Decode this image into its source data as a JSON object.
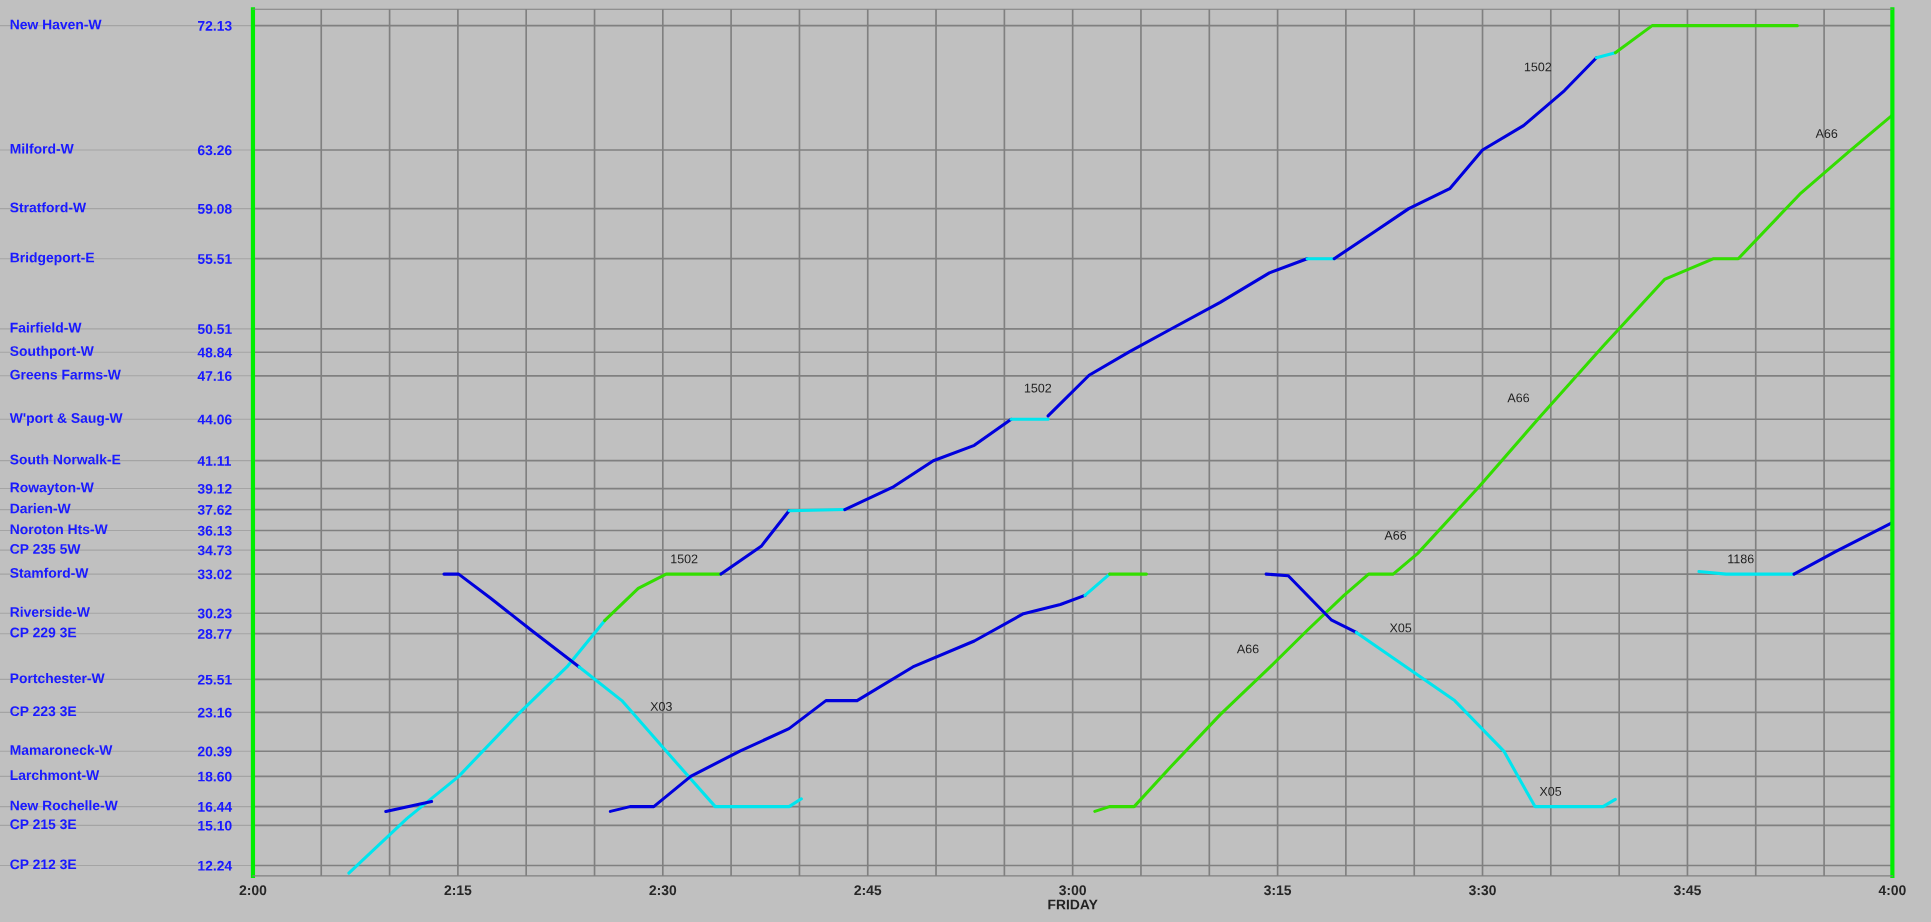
{
  "chart_data": {
    "type": "line",
    "xlabel": "FRIDAY",
    "xlim": [
      2,
      4
    ],
    "ylim": [
      11.5,
      73.3
    ],
    "xticks": [
      {
        "value": 2,
        "label": "2:00"
      },
      {
        "value": 2.0833,
        "label": null
      },
      {
        "value": 2.1667,
        "label": null
      },
      {
        "value": 2.25,
        "label": "2:15"
      },
      {
        "value": 2.3333,
        "label": null
      },
      {
        "value": 2.4167,
        "label": null
      },
      {
        "value": 2.5,
        "label": "2:30"
      },
      {
        "value": 2.5833,
        "label": null
      },
      {
        "value": 2.6667,
        "label": null
      },
      {
        "value": 2.75,
        "label": "2:45"
      },
      {
        "value": 2.8333,
        "label": null
      },
      {
        "value": 2.9167,
        "label": null
      },
      {
        "value": 3,
        "label": "3:00"
      },
      {
        "value": 3.0833,
        "label": null
      },
      {
        "value": 3.1667,
        "label": null
      },
      {
        "value": 3.25,
        "label": "3:15"
      },
      {
        "value": 3.3333,
        "label": null
      },
      {
        "value": 3.4167,
        "label": null
      },
      {
        "value": 3.5,
        "label": "3:30"
      },
      {
        "value": 3.5833,
        "label": null
      },
      {
        "value": 3.6667,
        "label": null
      },
      {
        "value": 3.75,
        "label": "3:45"
      },
      {
        "value": 3.8333,
        "label": null
      },
      {
        "value": 3.9167,
        "label": null
      },
      {
        "value": 4,
        "label": "4:00"
      }
    ],
    "yticks": [
      72.13,
      63.26,
      59.08,
      55.51,
      50.51,
      48.84,
      47.16,
      44.06,
      41.11,
      39.12,
      37.62,
      36.13,
      34.73,
      33.02,
      30.23,
      28.77,
      25.51,
      23.16,
      20.39,
      {
        "value": 18.6,
        "label": "18.60"
      },
      16.44,
      {
        "value": 15.1,
        "label": "15.10"
      },
      12.24
    ],
    "ref_lines": [
      {
        "axis": "y",
        "value": 72.13,
        "label": "New Haven-W"
      },
      {
        "axis": "y",
        "value": 63.26,
        "label": "Milford-W"
      },
      {
        "axis": "y",
        "value": 59.08,
        "label": "Stratford-W"
      },
      {
        "axis": "y",
        "value": 55.51,
        "label": "Bridgeport-E"
      },
      {
        "axis": "y",
        "value": 50.51,
        "label": "Fairfield-W"
      },
      {
        "axis": "y",
        "value": 48.84,
        "label": "Southport-W"
      },
      {
        "axis": "y",
        "value": 47.16,
        "label": "Greens Farms-W"
      },
      {
        "axis": "y",
        "value": 44.06,
        "label": "W'port & Saug-W"
      },
      {
        "axis": "y",
        "value": 41.11,
        "label": "South Norwalk-E"
      },
      {
        "axis": "y",
        "value": 39.12,
        "label": "Rowayton-W"
      },
      {
        "axis": "y",
        "value": 37.62,
        "label": "Darien-W"
      },
      {
        "axis": "y",
        "value": 36.13,
        "label": "Noroton Hts-W"
      },
      {
        "axis": "y",
        "value": 34.73,
        "label": "CP 235 5W"
      },
      {
        "axis": "y",
        "value": 33.02,
        "label": "Stamford-W"
      },
      {
        "axis": "y",
        "value": 30.23,
        "label": "Riverside-W"
      },
      {
        "axis": "y",
        "value": 28.77,
        "label": "CP 229 3E"
      },
      {
        "axis": "y",
        "value": 25.51,
        "label": "Portchester-W"
      },
      {
        "axis": "y",
        "value": 23.16,
        "label": "CP 223 3E"
      },
      {
        "axis": "y",
        "value": 20.39,
        "label": "Mamaroneck-W"
      },
      {
        "axis": "y",
        "value": 18.6,
        "label": "Larchmont-W"
      },
      {
        "axis": "y",
        "value": 16.44,
        "label": "New Rochelle-W"
      },
      {
        "axis": "y",
        "value": 15.1,
        "label": "CP 215 3E"
      },
      {
        "axis": "y",
        "value": 12.24,
        "label": "CP 212 3E"
      }
    ],
    "grid": "x",
    "series": [
      {
        "color": "#00e5ee",
        "x": [
          2.117,
          2.188,
          2.251,
          2.323,
          2.383,
          2.429
        ],
        "values": [
          11.7,
          15.6,
          18.6,
          23.0,
          26.4,
          29.7
        ]
      },
      {
        "color": "#33dd00",
        "x": [
          2.429,
          2.47,
          2.504,
          2.571
        ],
        "values": [
          29.7,
          32.0,
          33.02,
          33.02
        ]
      },
      {
        "color": "#0000dd",
        "x": [
          2.571,
          2.62,
          2.654
        ],
        "values": [
          33.02,
          35.0,
          37.54
        ]
      },
      {
        "color": "#00e5ee",
        "x": [
          2.654,
          2.722
        ],
        "values": [
          37.54,
          37.62
        ]
      },
      {
        "color": "#0000dd",
        "x": [
          2.722,
          2.78,
          2.83,
          2.88,
          2.925
        ],
        "values": [
          37.62,
          39.2,
          41.1,
          42.2,
          44.06
        ]
      },
      {
        "color": "#00e5ee",
        "x": [
          2.925,
          2.97
        ],
        "values": [
          44.06,
          44.06
        ]
      },
      {
        "color": "#0000dd",
        "x": [
          2.97,
          3.02,
          3.07,
          3.12,
          3.18,
          3.24,
          3.286
        ],
        "values": [
          44.3,
          47.2,
          48.9,
          50.5,
          52.4,
          54.5,
          55.51
        ]
      },
      {
        "color": "#00e5ee",
        "x": [
          3.286,
          3.319
        ],
        "values": [
          55.51,
          55.51
        ]
      },
      {
        "color": "#0000dd",
        "x": [
          3.319,
          3.37,
          3.41,
          3.46,
          3.5,
          3.55,
          3.6,
          3.639
        ],
        "values": [
          55.51,
          57.5,
          59.08,
          60.5,
          63.26,
          65.0,
          67.5,
          69.84
        ]
      },
      {
        "color": "#00e5ee",
        "x": [
          3.639,
          3.662
        ],
        "values": [
          69.84,
          70.2
        ]
      },
      {
        "color": "#33dd00",
        "x": [
          3.662,
          3.707,
          3.884
        ],
        "values": [
          70.2,
          72.13,
          72.13
        ]
      },
      {
        "color": "#0000dd",
        "x": [
          2.162,
          2.218
        ],
        "values": [
          16.1,
          16.8
        ]
      },
      {
        "color": "#0000dd",
        "x": [
          2.233,
          2.251,
          2.29,
          2.34,
          2.398
        ],
        "values": [
          33.02,
          33.02,
          31.3,
          29.0,
          26.4
        ]
      },
      {
        "color": "#00e5ee",
        "x": [
          2.398,
          2.45,
          2.504,
          2.564,
          2.654,
          2.669
        ],
        "values": [
          26.4,
          24.0,
          20.4,
          16.44,
          16.44,
          17.0
        ]
      },
      {
        "color": "#0000dd",
        "x": [
          2.436,
          2.46,
          2.489,
          2.534,
          2.594,
          2.654,
          2.699,
          2.737,
          2.805,
          2.88,
          2.94,
          2.985,
          3.015
        ],
        "values": [
          16.1,
          16.44,
          16.44,
          18.6,
          20.4,
          22.0,
          24.0,
          24.0,
          26.4,
          28.25,
          30.2,
          30.85,
          31.5
        ]
      },
      {
        "color": "#00e5ee",
        "x": [
          3.015,
          3.045
        ],
        "values": [
          31.5,
          33.02
        ]
      },
      {
        "color": "#33dd00",
        "x": [
          3.045,
          3.09
        ],
        "values": [
          33.02,
          33.02
        ]
      },
      {
        "color": "#33dd00",
        "x": [
          3.027,
          3.045,
          3.075,
          3.12,
          3.18,
          3.241,
          3.286,
          3.331,
          3.361,
          3.391,
          3.421,
          3.496,
          3.571,
          3.647,
          3.722,
          3.782,
          3.812,
          3.887,
          3.947,
          4.0
        ],
        "values": [
          16.1,
          16.44,
          16.44,
          19.3,
          23.0,
          26.4,
          29.0,
          31.5,
          33.02,
          33.02,
          34.5,
          39.27,
          44.3,
          49.26,
          54.03,
          55.51,
          55.51,
          60.11,
          63.15,
          65.75
        ]
      },
      {
        "color": "#0000dd",
        "x": [
          3.236,
          3.263,
          3.316,
          3.346
        ],
        "values": [
          33.02,
          32.9,
          29.73,
          28.86
        ]
      },
      {
        "color": "#00e5ee",
        "x": [
          3.346,
          3.466,
          3.526,
          3.564,
          3.647,
          3.662
        ],
        "values": [
          28.86,
          24.0,
          20.4,
          16.44,
          16.44,
          16.96
        ]
      },
      {
        "color": "#00e5ee",
        "x": [
          3.764,
          3.797,
          3.88
        ],
        "values": [
          33.2,
          33.02,
          33.02
        ]
      },
      {
        "color": "#0000dd",
        "x": [
          3.88,
          3.93,
          4.0
        ],
        "values": [
          33.02,
          34.6,
          36.7
        ]
      }
    ],
    "annotations": [
      {
        "text": "1502",
        "x": 3.598,
        "y": 67.9
      },
      {
        "text": "1502",
        "x": 2.988,
        "y": 45.0
      },
      {
        "text": "1502",
        "x": 2.526,
        "y": 33.02
      },
      {
        "text": "X03",
        "x": 2.471,
        "y": 22.3
      },
      {
        "text": "A66",
        "x": 3.241,
        "y": 26.4
      },
      {
        "text": "A66",
        "x": 3.421,
        "y": 34.5
      },
      {
        "text": "A66",
        "x": 3.571,
        "y": 44.3
      },
      {
        "text": "A66",
        "x": 3.947,
        "y": 63.15
      },
      {
        "text": "X05",
        "x": 3.373,
        "y": 27.9
      },
      {
        "text": "X05",
        "x": 3.583,
        "y": 16.44
      },
      {
        "text": "1186",
        "x": 3.815,
        "y": 33.02
      }
    ]
  }
}
